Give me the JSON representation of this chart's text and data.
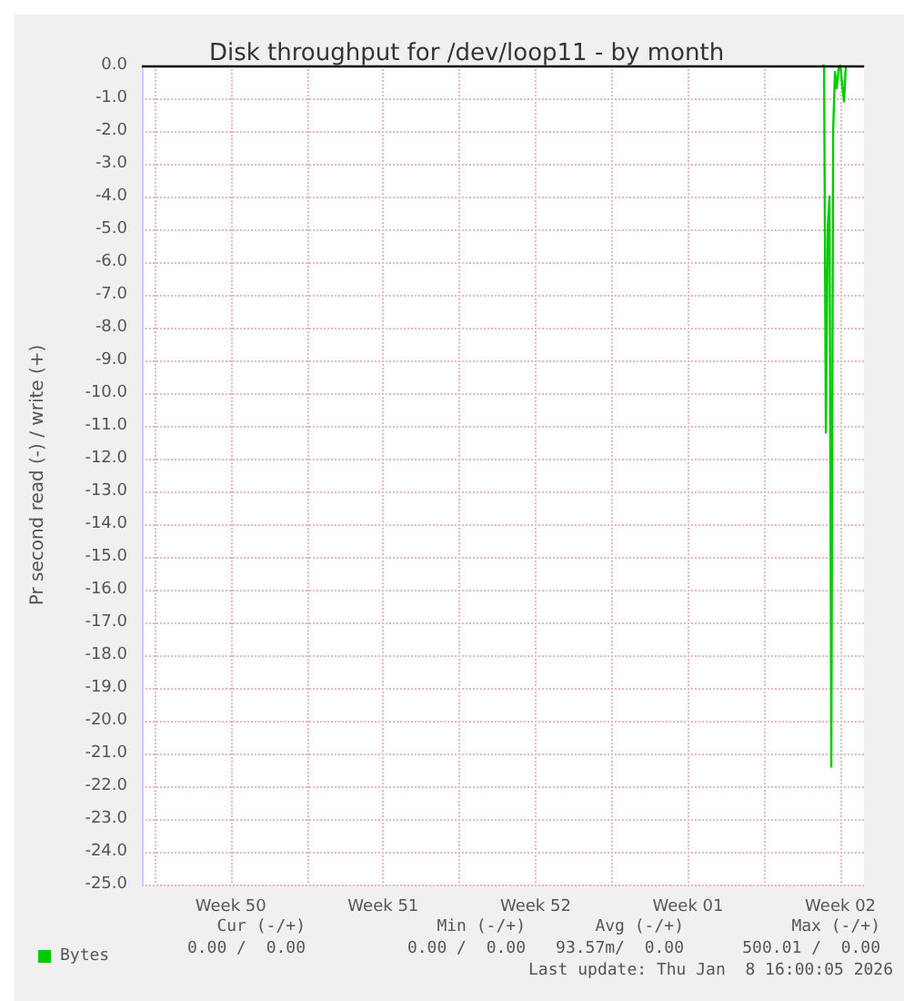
{
  "chart_data": {
    "type": "line",
    "title": "Disk throughput for /dev/loop11 - by month",
    "ylabel": "Pr second read (-) / write (+)",
    "x": [
      "2026-01-07T16:00",
      "2026-01-07T18:00",
      "2026-01-07T20:00",
      "2026-01-07T22:00",
      "2026-01-08T00:00",
      "2026-01-08T02:00",
      "2026-01-08T04:00",
      "2026-01-08T06:00",
      "2026-01-08T08:00",
      "2026-01-08T10:00",
      "2026-01-08T12:00",
      "2026-01-08T14:00",
      "2026-01-08T16:00",
      "2026-01-08T18:00"
    ],
    "series": [
      {
        "name": "Bytes",
        "color": "#00cc00",
        "values": [
          0,
          0,
          -11.2,
          -5.0,
          -4.0,
          -21.4,
          -2.0,
          -0.2,
          -0.7,
          -0.1,
          0,
          -0.6,
          -1.1,
          0
        ]
      }
    ],
    "xlim": [
      "2025-12-07T10:00",
      "2026-01-09T14:00"
    ],
    "xticks": [
      {
        "value": "2025-12-08T00:00",
        "label": null
      },
      {
        "value": "2025-12-11T12:00",
        "label": "Week 50"
      },
      {
        "value": "2025-12-15T00:00",
        "label": null
      },
      {
        "value": "2025-12-18T12:00",
        "label": "Week 51"
      },
      {
        "value": "2025-12-22T00:00",
        "label": null
      },
      {
        "value": "2025-12-25T12:00",
        "label": "Week 52"
      },
      {
        "value": "2025-12-29T00:00",
        "label": null
      },
      {
        "value": "2026-01-01T12:00",
        "label": "Week 01"
      },
      {
        "value": "2026-01-05T00:00",
        "label": null
      },
      {
        "value": "2026-01-08T12:00",
        "label": "Week 02"
      }
    ],
    "ylim": [
      -25,
      0
    ],
    "yticks": [
      {
        "value": 0,
        "label": "0.0"
      },
      {
        "value": -1,
        "label": "-1.0"
      },
      {
        "value": -2,
        "label": "-2.0"
      },
      {
        "value": -3,
        "label": "-3.0"
      },
      {
        "value": -4,
        "label": "-4.0"
      },
      {
        "value": -5,
        "label": "-5.0"
      },
      {
        "value": -6,
        "label": "-6.0"
      },
      {
        "value": -7,
        "label": "-7.0"
      },
      {
        "value": -8,
        "label": "-8.0"
      },
      {
        "value": -9,
        "label": "-9.0"
      },
      {
        "value": -10,
        "label": "-10.0"
      },
      {
        "value": -11,
        "label": "-11.0"
      },
      {
        "value": -12,
        "label": "-12.0"
      },
      {
        "value": -13,
        "label": "-13.0"
      },
      {
        "value": -14,
        "label": "-14.0"
      },
      {
        "value": -15,
        "label": "-15.0"
      },
      {
        "value": -16,
        "label": "-16.0"
      },
      {
        "value": -17,
        "label": "-17.0"
      },
      {
        "value": -18,
        "label": "-18.0"
      },
      {
        "value": -19,
        "label": "-19.0"
      },
      {
        "value": -20,
        "label": "-20.0"
      },
      {
        "value": -21,
        "label": "-21.0"
      },
      {
        "value": -22,
        "label": "-22.0"
      },
      {
        "value": -23,
        "label": "-23.0"
      },
      {
        "value": -24,
        "label": "-24.0"
      },
      {
        "value": -25,
        "label": "-25.0"
      }
    ],
    "ref_lines": [
      {
        "axis": "y",
        "value": 0,
        "label": null,
        "color": "#000000"
      }
    ],
    "grid": true,
    "legend": "bottom left",
    "marker": "none",
    "line_style": "solid",
    "annotations": [
      "Cur (-/+)",
      "Min (-/+)",
      "Avg (-/+)",
      "Max (-/+)",
      "0.00 /  0.00",
      "0.00 /  0.00",
      "93.57m/  0.00",
      "500.01 /  0.00",
      "Last update: Thu Jan  8 16:00:05 2026"
    ]
  }
}
